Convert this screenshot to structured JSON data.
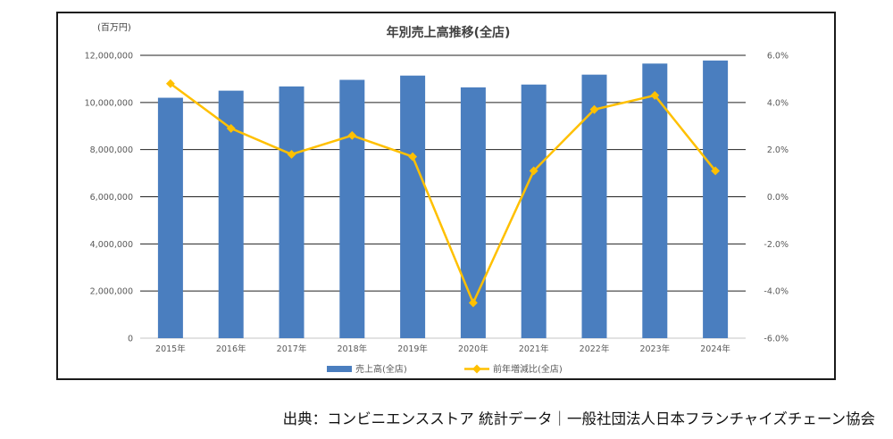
{
  "page": {
    "caption": "出典：コンビニエンスストア 統計データ｜一般社団法人日本フランチャイズチェーン協会"
  },
  "chart_data": {
    "type": "bar",
    "title": "年別売上高推移(全店)",
    "unit_label": "(百万円)",
    "categories": [
      "2015年",
      "2016年",
      "2017年",
      "2018年",
      "2019年",
      "2020年",
      "2021年",
      "2022年",
      "2023年",
      "2024年"
    ],
    "series": [
      {
        "name": "売上高(全店)",
        "type": "bar",
        "axis": "left",
        "color": "#4a7ebf",
        "values": [
          10200000,
          10500000,
          10680000,
          10960000,
          11140000,
          10640000,
          10760000,
          11180000,
          11650000,
          11780000
        ]
      },
      {
        "name": "前年増減比(全店)",
        "type": "line",
        "axis": "right",
        "color": "#ffc000",
        "values": [
          4.8,
          2.9,
          1.8,
          2.6,
          1.7,
          -4.5,
          1.1,
          3.7,
          4.3,
          1.1
        ]
      }
    ],
    "ylim_left": [
      0,
      12000000
    ],
    "yticks_left": [
      "0",
      "2,000,000",
      "4,000,000",
      "6,000,000",
      "8,000,000",
      "10,000,000",
      "12,000,000"
    ],
    "ylim_right": [
      -6,
      6
    ],
    "yticks_right": [
      "-6.0%",
      "-4.0%",
      "-2.0%",
      "0.0%",
      "2.0%",
      "4.0%",
      "6.0%"
    ],
    "grid": true,
    "legend": "bottom",
    "axis_color": "#d9d9d9",
    "grid_color": "#222222",
    "text_color": "#595959"
  }
}
